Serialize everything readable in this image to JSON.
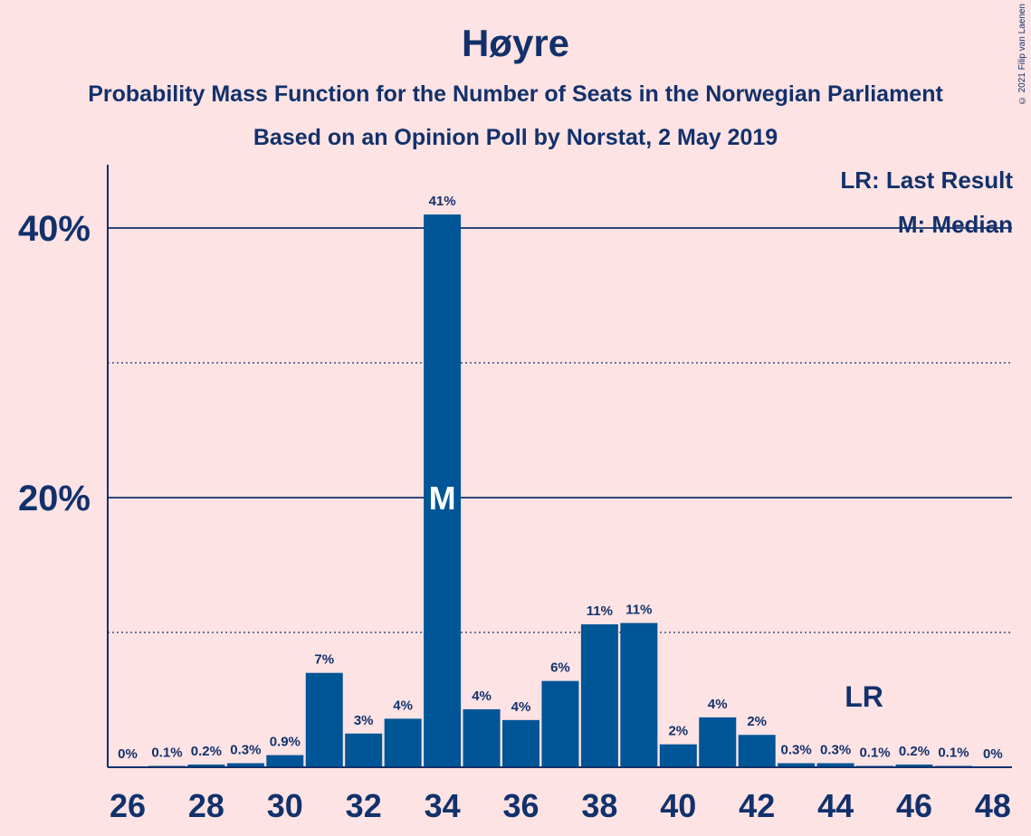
{
  "title": "Høyre",
  "subtitle_line1": "Probability Mass Function for the Number of Seats in the Norwegian Parliament",
  "subtitle_line2": "Based on an Opinion Poll by Norstat, 2 May 2019",
  "copyright": "© 2021 Filip van Laenen",
  "legend": {
    "last_result": "LR: Last Result",
    "median": "M: Median"
  },
  "colors": {
    "background": "#fde3e4",
    "bar": "#005596",
    "text": "#12316b"
  },
  "chart_data": {
    "type": "bar",
    "x": [
      26,
      27,
      28,
      29,
      30,
      31,
      32,
      33,
      34,
      35,
      36,
      37,
      38,
      39,
      40,
      41,
      42,
      43,
      44,
      45,
      46,
      47,
      48
    ],
    "values": [
      0,
      0.1,
      0.2,
      0.3,
      0.9,
      7.0,
      2.5,
      3.6,
      41.0,
      4.3,
      3.5,
      6.4,
      10.6,
      10.7,
      1.7,
      3.7,
      2.4,
      0.3,
      0.3,
      0.1,
      0.2,
      0.1,
      0
    ],
    "labels": [
      "0%",
      "0.1%",
      "0.2%",
      "0.3%",
      "0.9%",
      "7%",
      "3%",
      "4%",
      "41%",
      "4%",
      "4%",
      "6%",
      "11%",
      "11%",
      "2%",
      "4%",
      "2%",
      "0.3%",
      "0.3%",
      "0.1%",
      "0.2%",
      "0.1%",
      "0%"
    ],
    "x_ticks": [
      "26",
      "28",
      "30",
      "32",
      "34",
      "36",
      "38",
      "40",
      "42",
      "44",
      "46",
      "48"
    ],
    "y_ticks": [
      {
        "value": 20,
        "label": "20%"
      },
      {
        "value": 40,
        "label": "40%"
      }
    ],
    "y_minor_gridlines": [
      10,
      30
    ],
    "ylim": [
      0,
      45
    ],
    "median_seat": 34,
    "median_label": "M",
    "last_result_seat": 45,
    "last_result_label": "LR"
  }
}
